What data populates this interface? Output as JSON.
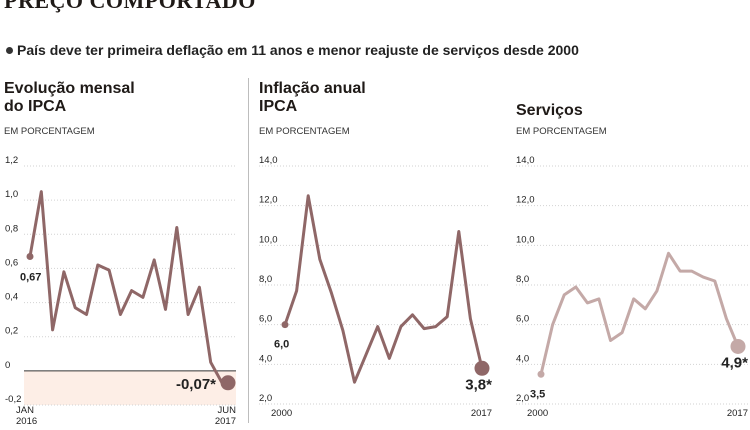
{
  "header": {
    "title": "PREÇO COMPORTADO"
  },
  "subtitle": "País deve ter primeira deflação em 11 anos e menor reajuste de serviços desde 2000",
  "panels": {
    "monthly": {
      "title_line1": "Evolução mensal",
      "title_line2": "do IPCA",
      "unit": "EM PORCENTAGEM"
    },
    "annual": {
      "title_line1": "Inflação anual",
      "title_line2": "IPCA",
      "unit": "EM PORCENTAGEM"
    },
    "services": {
      "title_line1": "Serviços",
      "unit": "EM PORCENTAGEM"
    }
  },
  "colors": {
    "line_dark": "#8f6767",
    "line_light": "#c4a9a7",
    "negative_area": "#fdeee6",
    "grid": "#d2d2d2"
  },
  "chart_data": [
    {
      "type": "line",
      "name": "monthly",
      "ylim": [
        -0.2,
        1.2
      ],
      "yticks": [
        -0.2,
        0,
        0.2,
        0.4,
        0.6,
        0.8,
        1.0,
        1.2
      ],
      "ytick_labels": [
        "-0,2",
        "0",
        "0,2",
        "0,4",
        "0,6",
        "0,8",
        "1,0",
        "1,2"
      ],
      "x_start_labels": [
        "JAN",
        "2016"
      ],
      "x_end_labels": [
        "JUN",
        "2017"
      ],
      "values": [
        0.67,
        1.05,
        0.24,
        0.58,
        0.37,
        0.33,
        0.62,
        0.59,
        0.33,
        0.47,
        0.43,
        0.65,
        0.36,
        0.84,
        0.33,
        0.49,
        0.05,
        -0.07
      ],
      "start_label": "0,67",
      "end_label": "-0,07*",
      "zero_line": true,
      "shade_negative": true
    },
    {
      "type": "line",
      "name": "annual",
      "series_label": "IPCA",
      "xlim": [
        2000,
        2017
      ],
      "ylim": [
        2.0,
        14.0
      ],
      "yticks": [
        2.0,
        4.0,
        6.0,
        8.0,
        10.0,
        12.0,
        14.0
      ],
      "ytick_labels": [
        "2,0",
        "4,0",
        "6,0",
        "8,0",
        "10,0",
        "12,0",
        "14,0"
      ],
      "x_labels": [
        "2000",
        "2017"
      ],
      "x": [
        2000,
        2001,
        2002,
        2003,
        2004,
        2005,
        2006,
        2007,
        2008,
        2009,
        2010,
        2011,
        2012,
        2013,
        2014,
        2015,
        2016,
        2017
      ],
      "values": [
        6.0,
        7.7,
        12.5,
        9.3,
        7.6,
        5.7,
        3.1,
        4.5,
        5.9,
        4.3,
        5.9,
        6.5,
        5.8,
        5.9,
        6.4,
        10.7,
        6.3,
        3.8
      ],
      "start_label": "6,0",
      "end_label": "3,8*"
    },
    {
      "type": "line",
      "name": "services",
      "series_label": "Serviços",
      "xlim": [
        2000,
        2017
      ],
      "ylim": [
        2.0,
        14.0
      ],
      "yticks": [
        2.0,
        4.0,
        6.0,
        8.0,
        10.0,
        12.0,
        14.0
      ],
      "ytick_labels": [
        "2,0",
        "4,0",
        "6,0",
        "8,0",
        "10,0",
        "12,0",
        "14,0"
      ],
      "x_labels": [
        "2000",
        "2017"
      ],
      "x": [
        2000,
        2001,
        2002,
        2003,
        2004,
        2005,
        2006,
        2007,
        2008,
        2009,
        2010,
        2011,
        2012,
        2013,
        2014,
        2015,
        2016,
        2017
      ],
      "values": [
        3.5,
        6.0,
        7.5,
        7.9,
        7.1,
        7.3,
        5.2,
        5.6,
        7.3,
        6.8,
        7.7,
        9.6,
        8.7,
        8.7,
        8.4,
        8.2,
        6.3,
        4.9
      ],
      "start_label": "3,5",
      "end_label": "4,9*"
    }
  ]
}
